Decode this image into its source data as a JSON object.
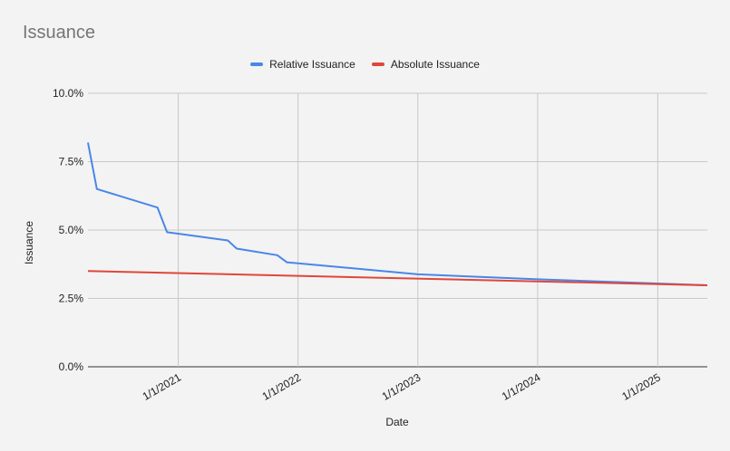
{
  "chart_data": {
    "type": "line",
    "title": "Issuance",
    "xlabel": "Date",
    "ylabel": "Issuance",
    "ylim": [
      0,
      10
    ],
    "xlim": [
      "2020-04-01",
      "2025-06-01"
    ],
    "y_ticks": [
      "0.0%",
      "2.5%",
      "5.0%",
      "7.5%",
      "10.0%"
    ],
    "y_tick_values": [
      0,
      2.5,
      5,
      7.5,
      10
    ],
    "x_ticks": [
      "1/1/2021",
      "1/1/2022",
      "1/1/2023",
      "1/1/2024",
      "1/1/2025"
    ],
    "x_tick_dates": [
      "2021-01-01",
      "2022-01-01",
      "2023-01-01",
      "2024-01-01",
      "2025-01-01"
    ],
    "grid": true,
    "legend_position": "top",
    "series": [
      {
        "name": "Relative Issuance",
        "color": "#4a86e8",
        "points": [
          [
            "2020-04-01",
            8.2
          ],
          [
            "2020-04-28",
            6.5
          ],
          [
            "2020-10-30",
            5.82
          ],
          [
            "2020-11-28",
            4.92
          ],
          [
            "2021-06-01",
            4.62
          ],
          [
            "2021-06-28",
            4.32
          ],
          [
            "2021-10-30",
            4.08
          ],
          [
            "2021-11-28",
            3.82
          ],
          [
            "2023-01-01",
            3.38
          ],
          [
            "2024-01-01",
            3.2
          ],
          [
            "2025-06-01",
            2.98
          ]
        ]
      },
      {
        "name": "Absolute Issuance",
        "color": "#e0463b",
        "points": [
          [
            "2020-04-01",
            3.5
          ],
          [
            "2025-06-01",
            2.98
          ]
        ]
      }
    ]
  }
}
